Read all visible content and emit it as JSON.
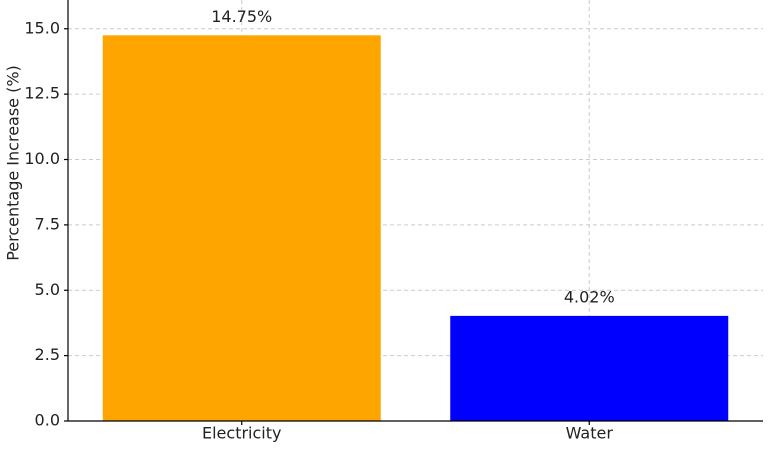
{
  "chart_data": {
    "type": "bar",
    "y_label": "Percentage Increase (%)",
    "categories": [
      "Electricity",
      "Water"
    ],
    "values": [
      14.75,
      4.02
    ],
    "value_labels": [
      "14.75%",
      "4.02%"
    ],
    "colors": [
      "#ffa500",
      "#0000ff"
    ],
    "ylim": [
      0,
      16.1
    ],
    "yticks": [
      {
        "value": 0,
        "label": "0.0"
      },
      2.5,
      {
        "value": 5,
        "label": "5.0"
      },
      7.5,
      {
        "value": 10,
        "label": "10.0"
      },
      12.5,
      {
        "value": 15,
        "label": "15.0"
      }
    ],
    "grid": true
  }
}
